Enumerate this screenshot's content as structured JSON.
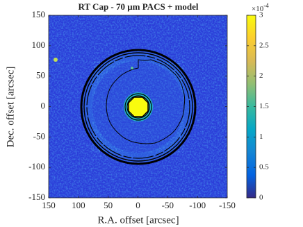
{
  "chart_data": {
    "type": "image",
    "title": "RT Cap - 70 μm PACS + model",
    "xlabel": "R.A. offset [arcsec]",
    "ylabel": "Dec. offset [arcsec]",
    "xlim": [
      150,
      -150
    ],
    "xticks": [
      150,
      100,
      50,
      0,
      -50,
      -100,
      -150
    ],
    "ylim": [
      -150,
      150
    ],
    "yticks": [
      -150,
      -100,
      -50,
      0,
      50,
      100,
      150
    ],
    "colorbar": {
      "clim": [
        0,
        0.0003
      ],
      "ticks": [
        0,
        {
          "value": 5e-05,
          "label": "0.5"
        },
        {
          "value": 0.0001,
          "label": "1"
        },
        {
          "value": 0.00015,
          "label": "1.5"
        },
        {
          "value": 0.0002,
          "label": "2"
        },
        {
          "value": 0.00025,
          "label": "2.5"
        },
        {
          "value": 0.0003,
          "label": "3"
        }
      ],
      "multiplier_base": "×10",
      "multiplier_exponent": "-4",
      "colors": [
        "#352a87",
        "#0363e1",
        "#1485d4",
        "#06a7c6",
        "#38b99e",
        "#92bf73",
        "#d9ba56",
        "#fcce2e",
        "#f9fb0e"
      ]
    }
  }
}
